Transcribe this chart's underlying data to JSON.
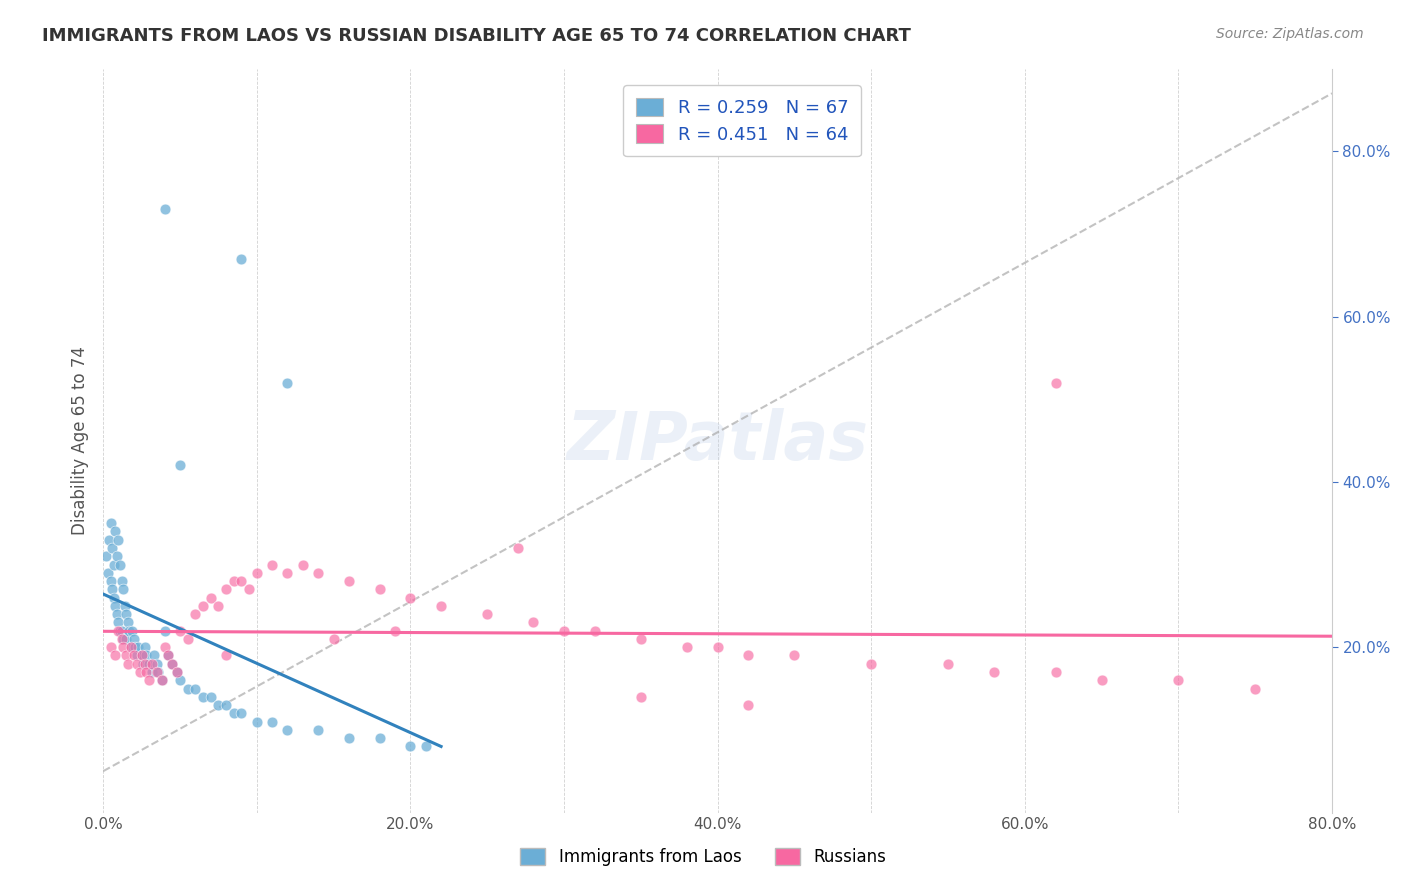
{
  "title": "IMMIGRANTS FROM LAOS VS RUSSIAN DISABILITY AGE 65 TO 74 CORRELATION CHART",
  "source": "Source: ZipAtlas.com",
  "ylabel": "Disability Age 65 to 74",
  "x_tick_pos": [
    0.0,
    0.1,
    0.2,
    0.3,
    0.4,
    0.5,
    0.6,
    0.7,
    0.8
  ],
  "x_tick_labels": [
    "0.0%",
    "",
    "20.0%",
    "",
    "40.0%",
    "",
    "60.0%",
    "",
    "80.0%"
  ],
  "y_ticks_right": [
    0.2,
    0.4,
    0.6,
    0.8
  ],
  "y_tick_labels_right": [
    "20.0%",
    "40.0%",
    "60.0%",
    "80.0%"
  ],
  "xlim": [
    0.0,
    0.8
  ],
  "ylim": [
    0.0,
    0.9
  ],
  "legend_label1": "R = 0.259   N = 67",
  "legend_label2": "R = 0.451   N = 64",
  "color_blue": "#6baed6",
  "color_pink": "#f768a1",
  "color_blue_line": "#3182bd",
  "color_pink_line": "#f768a1",
  "color_dashed": "#aaaaaa",
  "watermark": "ZIPatlas",
  "background": "#ffffff",
  "grid_color": "#cccccc",
  "laos_x": [
    0.002,
    0.003,
    0.004,
    0.005,
    0.005,
    0.006,
    0.006,
    0.007,
    0.007,
    0.008,
    0.008,
    0.009,
    0.009,
    0.01,
    0.01,
    0.011,
    0.011,
    0.012,
    0.012,
    0.013,
    0.013,
    0.014,
    0.015,
    0.015,
    0.016,
    0.017,
    0.018,
    0.019,
    0.02,
    0.021,
    0.022,
    0.023,
    0.025,
    0.026,
    0.027,
    0.028,
    0.03,
    0.032,
    0.033,
    0.035,
    0.036,
    0.038,
    0.04,
    0.042,
    0.045,
    0.048,
    0.05,
    0.055,
    0.06,
    0.065,
    0.07,
    0.075,
    0.08,
    0.085,
    0.09,
    0.1,
    0.11,
    0.12,
    0.14,
    0.16,
    0.18,
    0.2,
    0.21,
    0.04,
    0.09,
    0.05,
    0.12
  ],
  "laos_y": [
    0.31,
    0.29,
    0.33,
    0.35,
    0.28,
    0.32,
    0.27,
    0.3,
    0.26,
    0.34,
    0.25,
    0.31,
    0.24,
    0.33,
    0.23,
    0.3,
    0.22,
    0.28,
    0.22,
    0.27,
    0.21,
    0.25,
    0.24,
    0.21,
    0.23,
    0.22,
    0.2,
    0.22,
    0.21,
    0.2,
    0.19,
    0.2,
    0.19,
    0.18,
    0.2,
    0.19,
    0.18,
    0.17,
    0.19,
    0.18,
    0.17,
    0.16,
    0.22,
    0.19,
    0.18,
    0.17,
    0.16,
    0.15,
    0.15,
    0.14,
    0.14,
    0.13,
    0.13,
    0.12,
    0.12,
    0.11,
    0.11,
    0.1,
    0.1,
    0.09,
    0.09,
    0.08,
    0.08,
    0.73,
    0.67,
    0.42,
    0.52
  ],
  "russian_x": [
    0.005,
    0.008,
    0.01,
    0.012,
    0.013,
    0.015,
    0.016,
    0.018,
    0.02,
    0.022,
    0.024,
    0.025,
    0.027,
    0.028,
    0.03,
    0.032,
    0.035,
    0.038,
    0.04,
    0.042,
    0.045,
    0.048,
    0.05,
    0.055,
    0.06,
    0.065,
    0.07,
    0.075,
    0.08,
    0.085,
    0.09,
    0.095,
    0.1,
    0.11,
    0.12,
    0.13,
    0.14,
    0.16,
    0.18,
    0.2,
    0.22,
    0.25,
    0.28,
    0.3,
    0.32,
    0.35,
    0.38,
    0.4,
    0.42,
    0.45,
    0.5,
    0.55,
    0.58,
    0.62,
    0.65,
    0.7,
    0.75,
    0.62,
    0.27,
    0.19,
    0.08,
    0.15,
    0.35,
    0.42
  ],
  "russian_y": [
    0.2,
    0.19,
    0.22,
    0.21,
    0.2,
    0.19,
    0.18,
    0.2,
    0.19,
    0.18,
    0.17,
    0.19,
    0.18,
    0.17,
    0.16,
    0.18,
    0.17,
    0.16,
    0.2,
    0.19,
    0.18,
    0.17,
    0.22,
    0.21,
    0.24,
    0.25,
    0.26,
    0.25,
    0.27,
    0.28,
    0.28,
    0.27,
    0.29,
    0.3,
    0.29,
    0.3,
    0.29,
    0.28,
    0.27,
    0.26,
    0.25,
    0.24,
    0.23,
    0.22,
    0.22,
    0.21,
    0.2,
    0.2,
    0.19,
    0.19,
    0.18,
    0.18,
    0.17,
    0.17,
    0.16,
    0.16,
    0.15,
    0.52,
    0.32,
    0.22,
    0.19,
    0.21,
    0.14,
    0.13
  ]
}
